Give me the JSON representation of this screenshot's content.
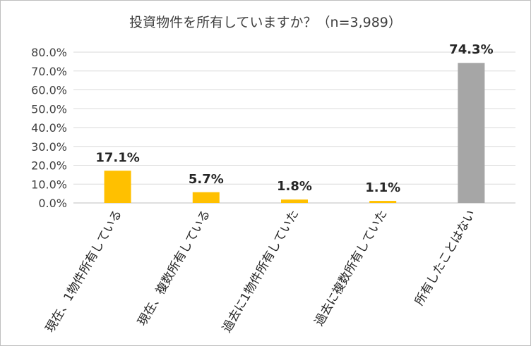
{
  "chart_data": {
    "type": "bar",
    "title": "投資物件を所有していますか？（n=3,989）",
    "categories": [
      "現在、1物件所有している",
      "現在、複数所有している",
      "過去に1物件所有していた",
      "過去に複数所有していた",
      "所有したことはない"
    ],
    "values": [
      17.1,
      5.7,
      1.8,
      1.1,
      74.3
    ],
    "data_labels": [
      "17.1%",
      "5.7%",
      "1.8%",
      "1.1%",
      "74.3%"
    ],
    "bar_colors": [
      "#FFC000",
      "#FFC000",
      "#FFC000",
      "#FFC000",
      "#A6A6A6"
    ],
    "ylim": [
      0,
      80
    ],
    "yticks": [
      0,
      10,
      20,
      30,
      40,
      50,
      60,
      70,
      80
    ],
    "ytick_labels": [
      "0.0%",
      "10.0%",
      "20.0%",
      "30.0%",
      "40.0%",
      "50.0%",
      "60.0%",
      "70.0%",
      "80.0%"
    ],
    "grid": true,
    "legend": "none",
    "gridline_color": "#d9d9d9",
    "axis_color": "#bfbfbf"
  }
}
